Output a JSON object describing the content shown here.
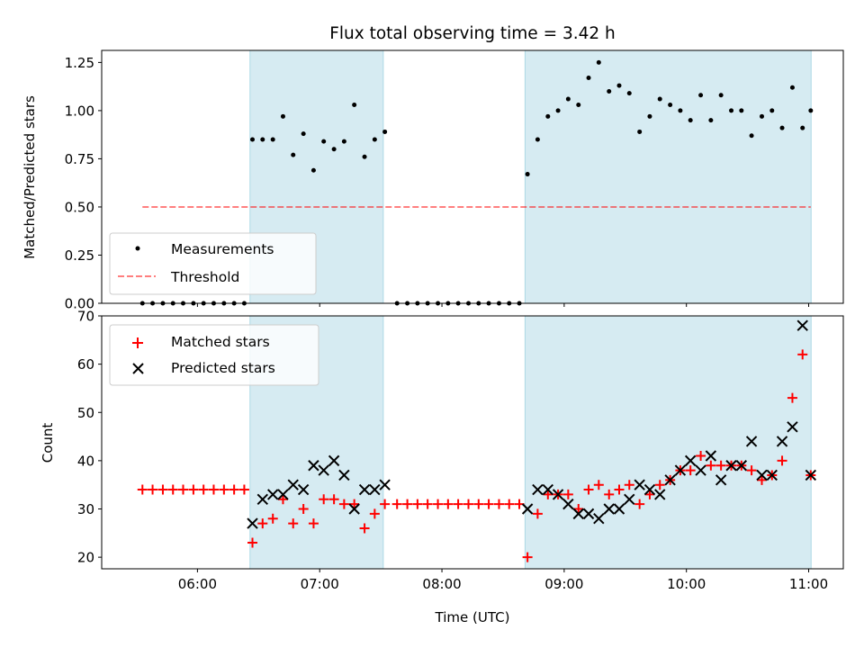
{
  "colors": {
    "band": "#add8e6",
    "measurement": "#000000",
    "threshold": "#ff0000",
    "matched": "#ff0000",
    "predicted": "#000000"
  },
  "shaded_intervals": [
    [
      6.43,
      7.52
    ],
    [
      8.68,
      11.02
    ]
  ],
  "chart_data": [
    {
      "type": "scatter",
      "title": "Flux total observing time = 3.42 h",
      "xlabel": "",
      "ylabel": "Matched/Predicted stars",
      "xlim": [
        5.2167,
        11.2833
      ],
      "ylim": [
        0,
        1.3125
      ],
      "yticks": [
        0,
        0.25,
        0.5,
        0.75,
        1.0,
        1.25
      ],
      "ytick_labels": [
        "0.00",
        "0.25",
        "0.50",
        "0.75",
        "1.00",
        "1.25"
      ],
      "xticks": [
        6,
        7,
        8,
        9,
        10,
        11
      ],
      "xtick_labels": [
        "",
        "",
        "",
        "",
        "",
        ""
      ],
      "legend_position": "lower-left",
      "series": [
        {
          "name": "Measurements",
          "kind": "points",
          "x": [
            5.55,
            5.633,
            5.717,
            5.8,
            5.883,
            5.967,
            6.05,
            6.133,
            6.217,
            6.3,
            6.383,
            6.45,
            6.533,
            6.617,
            6.7,
            6.783,
            6.867,
            6.95,
            7.033,
            7.117,
            7.2,
            7.283,
            7.367,
            7.45,
            7.533,
            7.633,
            7.717,
            7.8,
            7.883,
            7.967,
            8.05,
            8.133,
            8.217,
            8.3,
            8.383,
            8.467,
            8.55,
            8.633,
            8.7,
            8.783,
            8.867,
            8.95,
            9.033,
            9.117,
            9.2,
            9.283,
            9.367,
            9.45,
            9.533,
            9.617,
            9.7,
            9.783,
            9.867,
            9.95,
            10.033,
            10.117,
            10.2,
            10.283,
            10.367,
            10.45,
            10.533,
            10.617,
            10.7,
            10.783,
            10.867,
            10.95,
            11.017
          ],
          "y": [
            0,
            0,
            0,
            0,
            0,
            0,
            0,
            0,
            0,
            0,
            0,
            0.85,
            0.85,
            0.85,
            0.97,
            0.77,
            0.88,
            0.69,
            0.84,
            0.8,
            0.84,
            1.03,
            0.76,
            0.85,
            0.89,
            0,
            0,
            0,
            0,
            0,
            0,
            0,
            0,
            0,
            0,
            0,
            0,
            0,
            0.67,
            0.85,
            0.97,
            1.0,
            1.06,
            1.03,
            1.17,
            1.25,
            1.1,
            1.13,
            1.09,
            0.89,
            0.97,
            1.06,
            1.03,
            1.0,
            0.95,
            1.08,
            0.95,
            1.08,
            1.0,
            1.0,
            0.87,
            0.97,
            1.0,
            0.91,
            1.12,
            0.91,
            1.0
          ]
        },
        {
          "name": "Threshold",
          "kind": "dashed-line",
          "x": [
            5.55,
            11.017
          ],
          "y": [
            0.5,
            0.5
          ]
        }
      ]
    },
    {
      "type": "scatter",
      "title": "",
      "xlabel": "Time (UTC)",
      "ylabel": "Count",
      "xlim": [
        5.2167,
        11.2833
      ],
      "ylim": [
        17.6,
        70
      ],
      "yticks": [
        20,
        30,
        40,
        50,
        60,
        70
      ],
      "ytick_labels": [
        "20",
        "30",
        "40",
        "50",
        "60",
        "70"
      ],
      "xticks": [
        6,
        7,
        8,
        9,
        10,
        11
      ],
      "xtick_labels": [
        "06:00",
        "07:00",
        "08:00",
        "09:00",
        "10:00",
        "11:00"
      ],
      "legend_position": "upper-left",
      "series": [
        {
          "name": "Matched stars",
          "kind": "plus",
          "x": [
            5.55,
            5.633,
            5.717,
            5.8,
            5.883,
            5.967,
            6.05,
            6.133,
            6.217,
            6.3,
            6.383,
            6.45,
            6.533,
            6.617,
            6.7,
            6.783,
            6.867,
            6.95,
            7.033,
            7.117,
            7.2,
            7.283,
            7.367,
            7.45,
            7.533,
            7.633,
            7.717,
            7.8,
            7.883,
            7.967,
            8.05,
            8.133,
            8.217,
            8.3,
            8.383,
            8.467,
            8.55,
            8.633,
            8.7,
            8.783,
            8.867,
            8.95,
            9.033,
            9.117,
            9.2,
            9.283,
            9.367,
            9.45,
            9.533,
            9.617,
            9.7,
            9.783,
            9.867,
            9.95,
            10.033,
            10.117,
            10.2,
            10.283,
            10.367,
            10.45,
            10.533,
            10.617,
            10.7,
            10.783,
            10.867,
            10.95,
            11.017
          ],
          "y": [
            34,
            34,
            34,
            34,
            34,
            34,
            34,
            34,
            34,
            34,
            34,
            23,
            27,
            28,
            32,
            27,
            30,
            27,
            32,
            32,
            31,
            31,
            26,
            29,
            31,
            31,
            31,
            31,
            31,
            31,
            31,
            31,
            31,
            31,
            31,
            31,
            31,
            31,
            20,
            29,
            33,
            33,
            33,
            30,
            34,
            35,
            33,
            34,
            35,
            31,
            33,
            35,
            36,
            38,
            38,
            41,
            39,
            39,
            39,
            39,
            38,
            36,
            37,
            40,
            53,
            62,
            37
          ]
        },
        {
          "name": "Predicted stars",
          "kind": "x",
          "x": [
            6.45,
            6.533,
            6.617,
            6.7,
            6.783,
            6.867,
            6.95,
            7.033,
            7.117,
            7.2,
            7.283,
            7.367,
            7.45,
            7.533,
            8.7,
            8.783,
            8.867,
            8.95,
            9.033,
            9.117,
            9.2,
            9.283,
            9.367,
            9.45,
            9.533,
            9.617,
            9.7,
            9.783,
            9.867,
            9.95,
            10.033,
            10.117,
            10.2,
            10.283,
            10.367,
            10.45,
            10.533,
            10.617,
            10.7,
            10.783,
            10.867,
            10.95,
            11.017
          ],
          "y": [
            27,
            32,
            33,
            33,
            35,
            34,
            39,
            38,
            40,
            37,
            30,
            34,
            34,
            35,
            30,
            34,
            34,
            33,
            31,
            29,
            29,
            28,
            30,
            30,
            32,
            35,
            34,
            33,
            36,
            38,
            40,
            38,
            41,
            36,
            39,
            39,
            44,
            37,
            37,
            44,
            47,
            68,
            37
          ]
        }
      ]
    }
  ]
}
